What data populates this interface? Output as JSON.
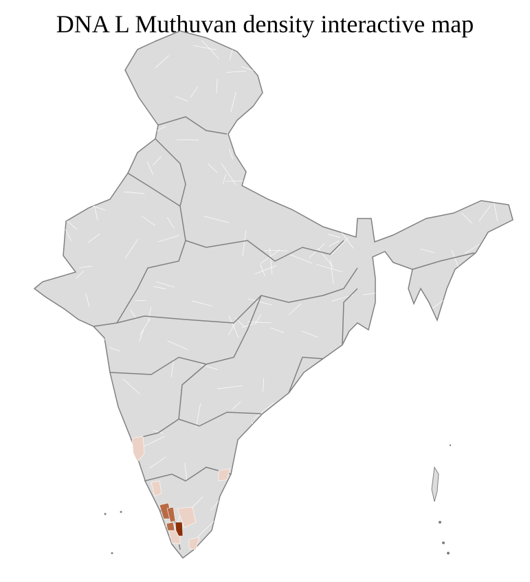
{
  "title": "DNA L Muthuvan density interactive map",
  "map": {
    "region": "India (districts)",
    "colors": {
      "land": "#dcdcdc",
      "district_border": "#ffffff",
      "state_border": "#808080",
      "density_none": "#dcdcdc",
      "density_low": "#ecd2c6",
      "density_medium": "#b86a45",
      "density_high": "#8a2f08"
    },
    "highlighted_districts": [
      {
        "level": "low"
      },
      {
        "level": "low"
      },
      {
        "level": "low"
      },
      {
        "level": "low"
      },
      {
        "level": "low"
      },
      {
        "level": "low"
      },
      {
        "level": "medium"
      },
      {
        "level": "medium"
      },
      {
        "level": "medium"
      },
      {
        "level": "high"
      }
    ]
  }
}
